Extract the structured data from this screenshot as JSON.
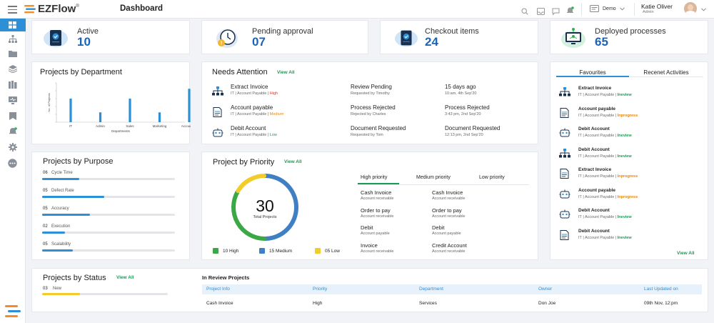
{
  "header": {
    "brand": "EZFlow",
    "brand_mark": "®",
    "page_title": "Dashboard",
    "workspace": "Demo",
    "user_name": "Katie Oliver",
    "user_role": "Admin"
  },
  "stats": [
    {
      "label": "Active",
      "value": "10",
      "icon": "tablet-check-icon"
    },
    {
      "label": "Pending approval",
      "value": "07",
      "icon": "clock-icon"
    },
    {
      "label": "Checkout items",
      "value": "24",
      "icon": "tablet-check-icon"
    },
    {
      "label": "Deployed processes",
      "value": "65",
      "icon": "monitor-network-icon"
    }
  ],
  "projects_by_department": {
    "title": "Projects by Department",
    "chart_data": {
      "type": "bar",
      "categories": [
        "IT",
        "Admin",
        "Sales",
        "Marketing",
        "Accounting"
      ],
      "values": [
        60,
        25,
        60,
        25,
        85
      ],
      "ylabel": "No. of Projects",
      "xlabel": "Departments"
    }
  },
  "needs_attention": {
    "title": "Needs Attention",
    "view_all": "View All",
    "items": [
      {
        "name": "Extract Invoice",
        "dept": "IT",
        "sep": "|",
        "type": "Account Payable",
        "priority": "High",
        "priority_color": "#d9342b",
        "status": "Review Pending",
        "status_sub": "Requested by Timothy",
        "when": "15 days ago",
        "when_sub": "10:am, 4th Sep'20",
        "icon": "org-chart-icon"
      },
      {
        "name": "Account payable",
        "dept": "IT",
        "sep": "|",
        "type": "Account Payable",
        "priority": "Medium",
        "priority_color": "#e8850c",
        "status": "Process Rejected",
        "status_sub": "Rejected by Charles",
        "when": "Process Rejected",
        "when_sub": "3:43 pm, 2nd Sep'20",
        "icon": "document-icon"
      },
      {
        "name": "Debit Account",
        "dept": "IT",
        "sep": "|",
        "type": "Account Payable",
        "priority": "Low",
        "priority_color": "#1a9a54",
        "status": "Document Requested",
        "status_sub": "Requested by Tom",
        "when": "Document Requested",
        "when_sub": "12:13 pm, 2nd Sep'20",
        "icon": "robot-icon"
      }
    ]
  },
  "favourites": {
    "tab_active": "Favourites",
    "tab_other": "Recenet Activities",
    "view_all": "View All",
    "items": [
      {
        "name": "Extract Invoice",
        "dept": "IT",
        "type": "Account Payable",
        "status": "Ineview",
        "status_color": "#1a9a54",
        "icon": "org-chart-icon"
      },
      {
        "name": "Account payable",
        "dept": "IT",
        "type": "Account Payable",
        "status": "Inprogress",
        "status_color": "#e8850c",
        "icon": "document-icon"
      },
      {
        "name": "Debit Account",
        "dept": "IT",
        "type": "Account Payable",
        "status": "Ineview",
        "status_color": "#1a9a54",
        "icon": "robot-icon"
      },
      {
        "name": "Debit Account",
        "dept": "IT",
        "type": "Account Payable",
        "status": "Ineview",
        "status_color": "#1a9a54",
        "icon": "org-chart-icon"
      },
      {
        "name": "Extract Invoice",
        "dept": "IT",
        "type": "Account Payable",
        "status": "Inprogress",
        "status_color": "#e8850c",
        "icon": "document-icon"
      },
      {
        "name": "Account payable",
        "dept": "IT",
        "type": "Account Payable",
        "status": "Inprogress",
        "status_color": "#e8850c",
        "icon": "robot-icon"
      },
      {
        "name": "Debit Account",
        "dept": "IT",
        "type": "Account Payable",
        "status": "Ineview",
        "status_color": "#1a9a54",
        "icon": "robot-icon"
      },
      {
        "name": "Debit Account",
        "dept": "IT",
        "type": "Account Payable",
        "status": "Ineview",
        "status_color": "#1a9a54",
        "icon": "document-icon"
      }
    ]
  },
  "projects_by_purpose": {
    "title": "Projects by Purpose",
    "items": [
      {
        "count": "06",
        "label": "Cycle Time",
        "fraction": 0.28
      },
      {
        "count": "05",
        "label": "Defect Rate",
        "fraction": 0.47
      },
      {
        "count": "05",
        "label": "Accuracy",
        "fraction": 0.36
      },
      {
        "count": "02",
        "label": "Execution",
        "fraction": 0.17
      },
      {
        "count": "05",
        "label": "Scalability",
        "fraction": 0.23
      }
    ]
  },
  "project_by_priority": {
    "title": "Project by Priority",
    "view_all": "View All",
    "total": "30",
    "total_label": "Total Projects",
    "chart_data": {
      "type": "pie",
      "categories": [
        "High",
        "Medium",
        "Low"
      ],
      "values": [
        10,
        15,
        5
      ],
      "colors": [
        "#3aa845",
        "#3f7fc4",
        "#f2cc2b"
      ]
    },
    "legend": [
      {
        "label": "10 High",
        "color": "#3aa845"
      },
      {
        "label": "15 Medium",
        "color": "#3f7fc4"
      },
      {
        "label": "05 Low",
        "color": "#f2cc2b"
      }
    ],
    "tabs": [
      "High priority",
      "Medium priority",
      "Low priority"
    ],
    "items": [
      {
        "name": "Cash Invoice",
        "sub": "Account receivable"
      },
      {
        "name": "Cash Invoice",
        "sub": "Account receivable"
      },
      {
        "name": "Order to pay",
        "sub": "Account receivable"
      },
      {
        "name": "Order to pay",
        "sub": "Account receivable"
      },
      {
        "name": "Debit",
        "sub": "Account payable"
      },
      {
        "name": "Debit",
        "sub": "Account payable"
      },
      {
        "name": "Invoice",
        "sub": "Account receivable"
      },
      {
        "name": "Credit Account",
        "sub": "Account receivable"
      }
    ]
  },
  "projects_by_status": {
    "title": "Projects by Status",
    "view_all": "View All",
    "item": {
      "count": "03",
      "label": "New",
      "fraction": 0.3
    }
  },
  "in_review": {
    "title": "In Review Projects",
    "columns": [
      "Project Info",
      "Priority",
      "Department",
      "Owner",
      "Last Updated on"
    ],
    "row": [
      "Cash Invoice",
      "High",
      "Services",
      "Don Joe",
      "09th Nov, 12:pm"
    ]
  },
  "colors": {
    "accent": "#1a64b8",
    "green": "#1a9a54",
    "sidebar_active": "#2d8fd6"
  }
}
